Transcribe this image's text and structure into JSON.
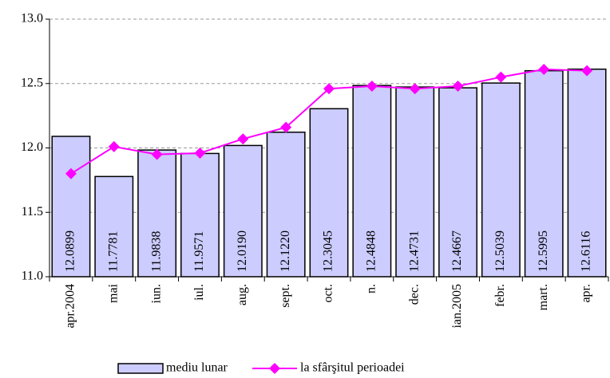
{
  "chart_data": {
    "type": "bar",
    "categories": [
      "apr.2004",
      "mai",
      "iun.",
      "iul.",
      "aug.",
      "sept.",
      "oct.",
      "n.",
      "dec.",
      "ian.2005",
      "febr.",
      "mart.",
      "apr."
    ],
    "series": [
      {
        "name": "mediu lunar",
        "type": "bar",
        "color": "#ccccff",
        "values": [
          12.0899,
          11.7781,
          11.9838,
          11.9571,
          12.019,
          12.122,
          12.3045,
          12.4848,
          12.4731,
          12.4667,
          12.5039,
          12.5995,
          12.6116
        ],
        "value_labels": [
          "12.0899",
          "11.7781",
          "11.9838",
          "11.9571",
          "12.0190",
          "12.1220",
          "12.3045",
          "12.4848",
          "12.4731",
          "12.4667",
          "12.5039",
          "12.5995",
          "12.6116"
        ]
      },
      {
        "name": "la sfârşitul perioadei",
        "type": "line",
        "color": "#ff00ff",
        "values": [
          11.8,
          12.01,
          11.95,
          11.96,
          12.07,
          12.16,
          12.46,
          12.48,
          12.46,
          12.48,
          12.55,
          12.61,
          12.6
        ]
      }
    ],
    "ylim": [
      11.0,
      13.0
    ],
    "yticks": [
      {
        "value": 11.0,
        "label": "11.0"
      },
      11.5,
      {
        "value": 12.0,
        "label": "12.0"
      },
      12.5,
      {
        "value": 13.0,
        "label": "13.0"
      }
    ],
    "grid": true,
    "legend": "bottom"
  }
}
